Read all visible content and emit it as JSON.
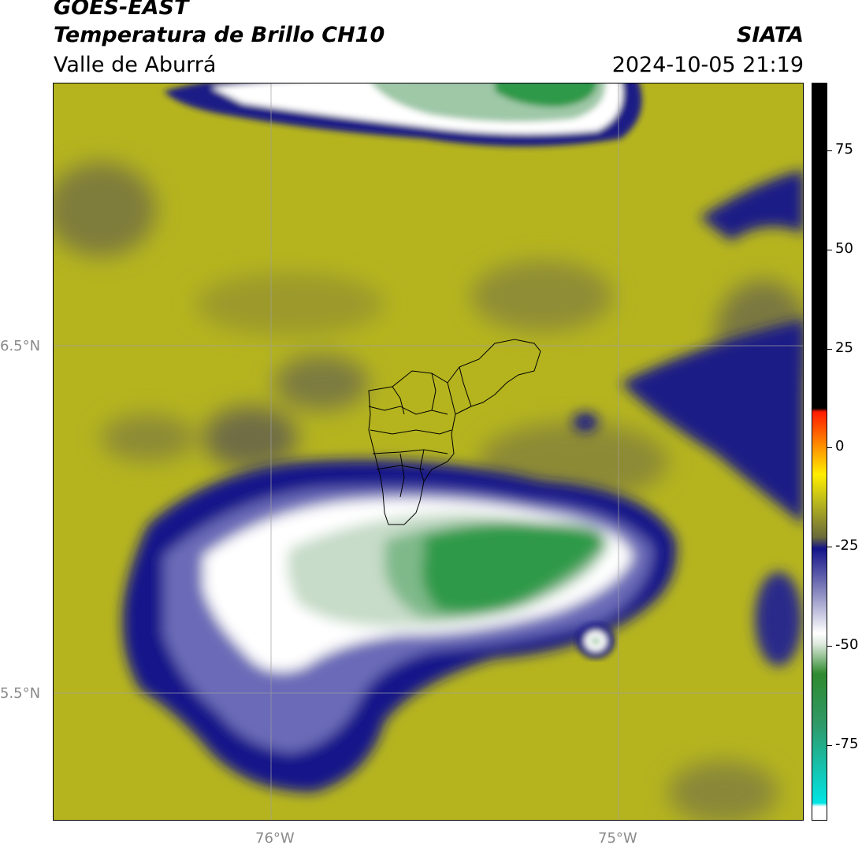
{
  "header": {
    "title_line1": "GOES-EAST",
    "title_line2": "Temperatura de Brillo CH10",
    "region": "Valle de Aburrá",
    "agency": "SIATA",
    "datetime": "2024-10-05 21:19"
  },
  "map": {
    "lat_labels": [
      "6.5°N",
      "5.5°N"
    ],
    "lon_labels": [
      "76°W",
      "75°W"
    ],
    "gridlines": true,
    "overlay": "Valle de Aburrá municipal boundaries"
  },
  "colorbar": {
    "ticks": [
      "75",
      "50",
      "25",
      "0",
      "-25",
      "-50",
      "-75"
    ],
    "tick_values": [
      75,
      50,
      25,
      0,
      -25,
      -50,
      -75
    ],
    "range": [
      -94,
      92
    ],
    "colors": {
      "warm": "#000000",
      "red": "#ff1a00",
      "orange": "#ff8c00",
      "yellow": "#ffee00",
      "olive": "#b5b41f",
      "navy": "#14148a",
      "white": "#ffffff",
      "green": "#2f9a4a",
      "cyan": "#00e5e5"
    }
  }
}
